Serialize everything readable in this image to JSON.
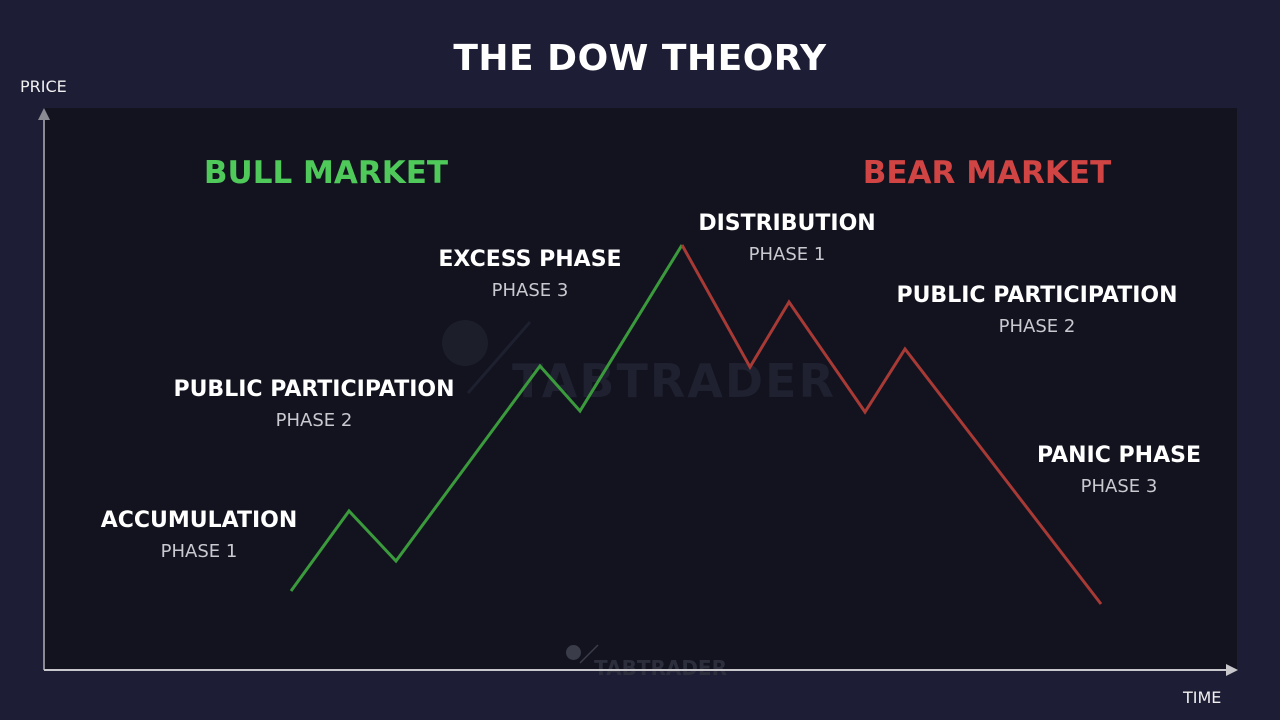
{
  "title": "THE DOW THEORY",
  "y_axis_label": "PRICE",
  "x_axis_label": "TIME",
  "watermark": "TABTRADER",
  "colors": {
    "bull": "#4ec95a",
    "bull_line": "#3a9a3c",
    "bear": "#d04444",
    "bear_line": "#a83a36",
    "background": "#1d1d35",
    "panel": "#12131f"
  },
  "bull_market": {
    "label": "BULL MARKET",
    "phases": [
      {
        "name": "ACCUMULATION",
        "phase": "PHASE 1"
      },
      {
        "name": "PUBLIC PARTICIPATION",
        "phase": "PHASE 2"
      },
      {
        "name": "EXCESS PHASE",
        "phase": "PHASE 3"
      }
    ]
  },
  "bear_market": {
    "label": "BEAR MARKET",
    "phases": [
      {
        "name": "DISTRIBUTION",
        "phase": "PHASE 1"
      },
      {
        "name": "PUBLIC PARTICIPATION",
        "phase": "PHASE 2"
      },
      {
        "name": "PANIC PHASE",
        "phase": "PHASE 3"
      }
    ]
  }
}
